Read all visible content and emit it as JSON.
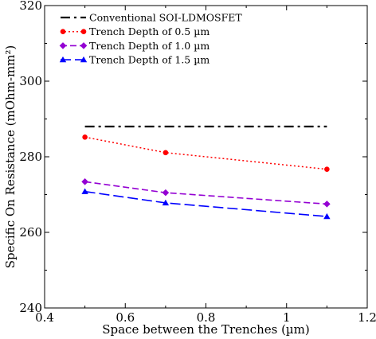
{
  "chart_data": {
    "type": "line",
    "title": "",
    "xlabel": "Space between the Trenches (µm)",
    "ylabel": "Specific On Resistance (mOhm-mm²)",
    "xlim": [
      0.4,
      1.2
    ],
    "ylim": [
      240,
      320
    ],
    "xticks": [
      0.4,
      0.6,
      0.8,
      1.0,
      1.2
    ],
    "xtick_labels": [
      "0.4",
      "0.6",
      "0.8",
      "1",
      "1.2"
    ],
    "yticks": [
      240,
      260,
      280,
      300,
      320
    ],
    "ytick_labels": [
      "240",
      "260",
      "280",
      "300",
      "320"
    ],
    "grid": false,
    "legend_position": "top-left",
    "series": [
      {
        "name": "Conventional SOI-LDMOSFET",
        "color": "#000000",
        "dash": "dash-dot",
        "marker": "none",
        "x": [
          0.5,
          1.1
        ],
        "y": [
          288,
          288
        ]
      },
      {
        "name": "Trench Depth of 0.5 µm",
        "color": "#ff0000",
        "dash": "dotted",
        "marker": "circle",
        "x": [
          0.5,
          0.7,
          1.1
        ],
        "y": [
          285.2,
          281.1,
          276.7
        ]
      },
      {
        "name": "Trench Depth of 1.0 µm",
        "color": "#9400d3",
        "dash": "dashed",
        "marker": "diamond",
        "x": [
          0.5,
          0.7,
          1.1
        ],
        "y": [
          273.4,
          270.5,
          267.5
        ]
      },
      {
        "name": "Trench Depth of 1.5 µm",
        "color": "#0000ff",
        "dash": "long-dash",
        "marker": "triangle",
        "x": [
          0.5,
          0.7,
          1.1
        ],
        "y": [
          270.8,
          267.8,
          264.2
        ]
      }
    ]
  }
}
